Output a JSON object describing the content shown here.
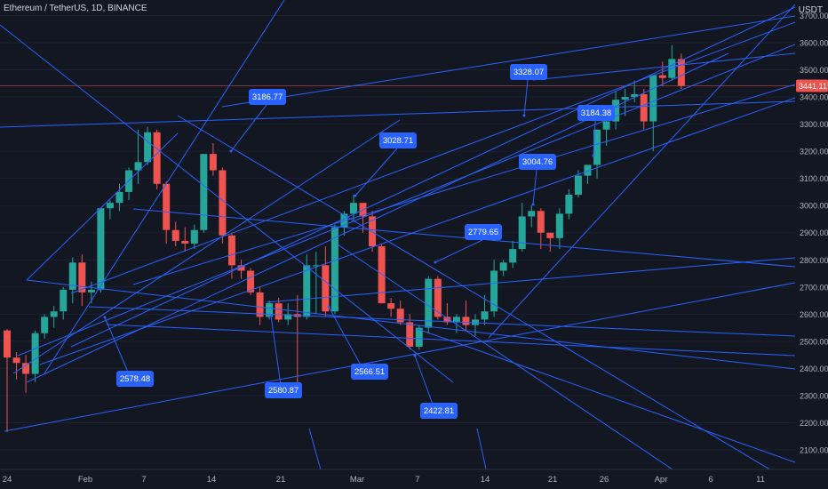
{
  "title": "Ethereum / TetherUS, 1D, BINANCE",
  "unit_label": "USDT",
  "colors": {
    "background": "#131722",
    "up": "#26a69a",
    "down": "#ef5350",
    "lines": "#2962ff",
    "label_bg": "#2962ff",
    "current_price_bg": "#ef5350",
    "axis_text": "#b2b5be"
  },
  "chart_data": {
    "type": "candlestick",
    "title": "Ethereum / TetherUS, 1D, BINANCE",
    "ylabel": "USDT",
    "ylim": [
      2050,
      3730
    ],
    "y_ticks": [
      "2100.00",
      "2200.00",
      "2300.00",
      "2400.00",
      "2500.00",
      "2600.00",
      "2700.00",
      "2800.00",
      "2900.00",
      "3000.00",
      "3100.00",
      "3200.00",
      "3300.00",
      "3400.00",
      "3500.00",
      "3600.00",
      "3700.00"
    ],
    "x_ticks": [
      "24",
      "Feb",
      "7",
      "14",
      "21",
      "Mar",
      "7",
      "14",
      "21",
      "26",
      "Apr",
      "6",
      "11"
    ],
    "current_price": "3441.11",
    "candles": [
      [
        2540,
        2545,
        2165,
        2440
      ],
      [
        2440,
        2460,
        2360,
        2420
      ],
      [
        2420,
        2450,
        2310,
        2380
      ],
      [
        2380,
        2540,
        2350,
        2530
      ],
      [
        2530,
        2600,
        2510,
        2590
      ],
      [
        2590,
        2630,
        2550,
        2610
      ],
      [
        2610,
        2700,
        2580,
        2690
      ],
      [
        2690,
        2810,
        2640,
        2790
      ],
      [
        2790,
        2820,
        2630,
        2680
      ],
      [
        2680,
        2720,
        2640,
        2690
      ],
      [
        2690,
        2980,
        2680,
        2990
      ],
      [
        2990,
        3020,
        2950,
        3010
      ],
      [
        3010,
        3080,
        2980,
        3050
      ],
      [
        3050,
        3140,
        3020,
        3130
      ],
      [
        3130,
        3280,
        3080,
        3160
      ],
      [
        3160,
        3290,
        3150,
        3270
      ],
      [
        3270,
        3280,
        3060,
        3080
      ],
      [
        3080,
        3090,
        2860,
        2910
      ],
      [
        2910,
        2940,
        2850,
        2870
      ],
      [
        2870,
        2920,
        2830,
        2860
      ],
      [
        2860,
        2930,
        2840,
        2910
      ],
      [
        2910,
        3190,
        2900,
        3190
      ],
      [
        3190,
        3230,
        3110,
        3130
      ],
      [
        3130,
        3140,
        2860,
        2890
      ],
      [
        2890,
        2900,
        2730,
        2780
      ],
      [
        2780,
        2800,
        2730,
        2760
      ],
      [
        2760,
        2770,
        2670,
        2680
      ],
      [
        2680,
        2700,
        2560,
        2590
      ],
      [
        2590,
        2650,
        2580,
        2640
      ],
      [
        2640,
        2660,
        2570,
        2580
      ],
      [
        2580,
        2640,
        2560,
        2600
      ],
      [
        2600,
        2670,
        2300,
        2590
      ],
      [
        2590,
        2820,
        2580,
        2780
      ],
      [
        2780,
        2830,
        2600,
        2780
      ],
      [
        2780,
        2850,
        2590,
        2610
      ],
      [
        2610,
        2930,
        2600,
        2920
      ],
      [
        2920,
        2980,
        2890,
        2970
      ],
      [
        2970,
        3040,
        2940,
        3010
      ],
      [
        3010,
        3000,
        2900,
        2960
      ],
      [
        2960,
        2980,
        2830,
        2850
      ],
      [
        2850,
        2860,
        2640,
        2640
      ],
      [
        2640,
        2660,
        2590,
        2620
      ],
      [
        2620,
        2650,
        2560,
        2570
      ],
      [
        2570,
        2600,
        2470,
        2480
      ],
      [
        2480,
        2560,
        2470,
        2550
      ],
      [
        2550,
        2740,
        2530,
        2730
      ],
      [
        2730,
        2740,
        2580,
        2590
      ],
      [
        2590,
        2640,
        2560,
        2570
      ],
      [
        2570,
        2600,
        2530,
        2590
      ],
      [
        2590,
        2650,
        2540,
        2560
      ],
      [
        2560,
        2600,
        2520,
        2580
      ],
      [
        2580,
        2670,
        2560,
        2610
      ],
      [
        2610,
        2800,
        2590,
        2760
      ],
      [
        2760,
        2800,
        2740,
        2790
      ],
      [
        2790,
        2870,
        2770,
        2840
      ],
      [
        2840,
        3010,
        2830,
        2960
      ],
      [
        2960,
        3000,
        2920,
        2980
      ],
      [
        2980,
        2990,
        2840,
        2900
      ],
      [
        2900,
        2900,
        2830,
        2880
      ],
      [
        2880,
        2990,
        2840,
        2970
      ],
      [
        2970,
        3060,
        2950,
        3040
      ],
      [
        3040,
        3130,
        3030,
        3110
      ],
      [
        3110,
        3140,
        3080,
        3150
      ],
      [
        3150,
        3280,
        3100,
        3280
      ],
      [
        3280,
        3330,
        3220,
        3310
      ],
      [
        3310,
        3420,
        3280,
        3390
      ],
      [
        3390,
        3430,
        3330,
        3400
      ],
      [
        3400,
        3460,
        3380,
        3410
      ],
      [
        3410,
        3430,
        3280,
        3310
      ],
      [
        3310,
        3480,
        3200,
        3480
      ],
      [
        3480,
        3530,
        3440,
        3470
      ],
      [
        3470,
        3590,
        3460,
        3540
      ],
      [
        3540,
        3560,
        3430,
        3441
      ]
    ],
    "annotations": [
      "3186.77",
      "3328.07",
      "3028.71",
      "3184.38",
      "3004.76",
      "2779.65",
      "2578.48",
      "2580.87",
      "2566.51",
      "2422.81"
    ]
  }
}
